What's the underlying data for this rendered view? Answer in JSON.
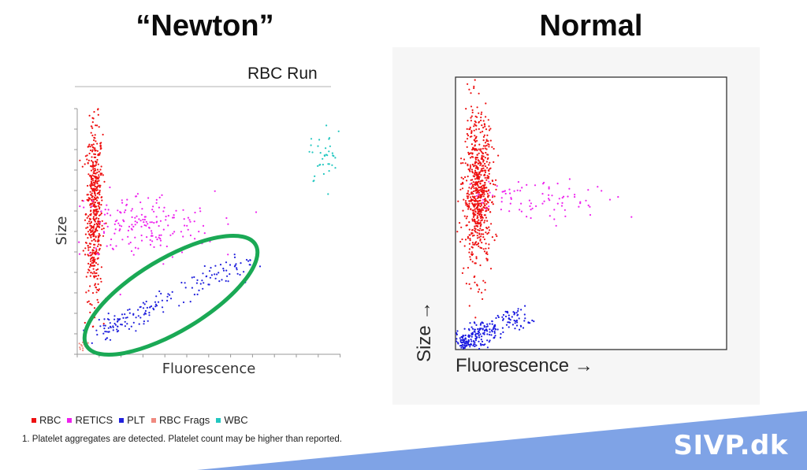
{
  "titles": {
    "left": "“Newton”",
    "right": "Normal"
  },
  "left_panel": {
    "run_title": "RBC Run"
  },
  "legend": [
    {
      "label": "RBC",
      "color": "#ee1111"
    },
    {
      "label": "RETICS",
      "color": "#ee22ee"
    },
    {
      "label": "PLT",
      "color": "#2222dd"
    },
    {
      "label": "RBC Frags",
      "color": "#f08a80"
    },
    {
      "label": "WBC",
      "color": "#22c7c0"
    }
  ],
  "footnote": "1. Platelet aggregates are detected. Platelet count may be higher than reported.",
  "brand": {
    "text": "SIVP.dk",
    "banner_color": "#7fa3e6"
  },
  "chart_data": [
    {
      "type": "scatter",
      "title": "RBC Run",
      "xlabel": "Fluorescence",
      "ylabel": "Size",
      "xlim": [
        0,
        100
      ],
      "ylim": [
        0,
        100
      ],
      "grid": false,
      "annotation": {
        "shape": "ellipse",
        "color": "#1aa955",
        "marks": "PLT cluster"
      },
      "series": [
        {
          "name": "RBC",
          "color": "#ee1111",
          "cluster": {
            "cx": 6,
            "cy": 58,
            "sx": 1.6,
            "sy": 18,
            "n": 520
          }
        },
        {
          "name": "RETICS",
          "color": "#ee22ee",
          "cluster": {
            "cx": 24,
            "cy": 52,
            "sx": 14,
            "sy": 7,
            "n": 190
          }
        },
        {
          "name": "PLT",
          "color": "#2222dd",
          "band": {
            "x_from": 8,
            "y_from": 8,
            "x_to": 65,
            "y_to": 38,
            "n": 170
          }
        },
        {
          "name": "RBC Frags",
          "color": "#f08a80",
          "cluster": {
            "cx": 1.5,
            "cy": 3,
            "sx": 1,
            "sy": 2,
            "n": 20
          }
        },
        {
          "name": "WBC",
          "color": "#22c7c0",
          "cluster": {
            "cx": 95,
            "cy": 80,
            "sx": 3,
            "sy": 5,
            "n": 40
          }
        }
      ]
    },
    {
      "type": "scatter",
      "title": "",
      "xlabel": "Fluorescence →",
      "ylabel": "Size →",
      "xlim": [
        0,
        100
      ],
      "ylim": [
        0,
        100
      ],
      "grid": false,
      "series": [
        {
          "name": "RBC",
          "color": "#ee1111",
          "cluster": {
            "cx": 8,
            "cy": 58,
            "sx": 2.6,
            "sy": 14,
            "n": 700
          }
        },
        {
          "name": "RETICS",
          "color": "#ee22ee",
          "cluster": {
            "cx": 30,
            "cy": 56,
            "sx": 18,
            "sy": 4,
            "n": 90
          }
        },
        {
          "name": "PLT",
          "color": "#1a1ae0",
          "band": {
            "x_from": 2,
            "y_from": 2,
            "x_to": 25,
            "y_to": 13,
            "n": 260
          }
        }
      ]
    }
  ]
}
